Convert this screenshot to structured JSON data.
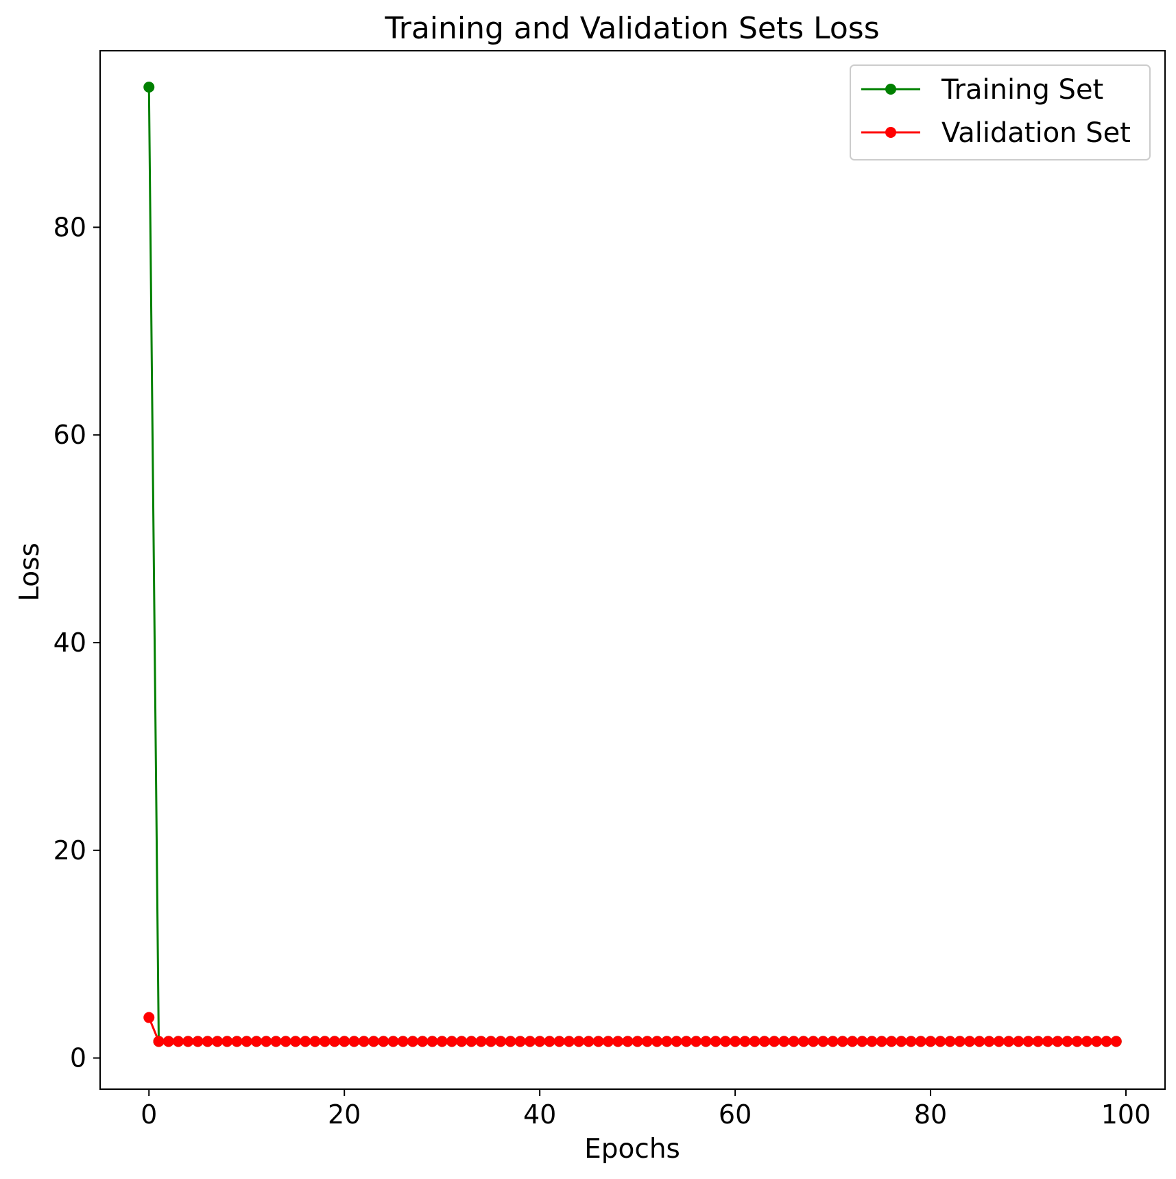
{
  "chart_data": {
    "type": "line",
    "title": "Training and Validation Sets Loss",
    "xlabel": "Epochs",
    "ylabel": "Loss",
    "xlim": [
      -5,
      104
    ],
    "ylim": [
      -3,
      97
    ],
    "xticks": [
      0,
      20,
      40,
      60,
      80,
      100
    ],
    "yticks": [
      0,
      20,
      40,
      60,
      80
    ],
    "grid": false,
    "legend_position": "upper right",
    "series": [
      {
        "name": "Training Set",
        "color": "#008000",
        "marker": "circle",
        "first_value": 93.5,
        "last_epoch": 99,
        "plateau_value": 1.6
      },
      {
        "name": "Validation Set",
        "color": "#ff0000",
        "marker": "circle",
        "first_value": 3.9,
        "last_epoch": 99,
        "plateau_value": 1.6
      }
    ]
  }
}
